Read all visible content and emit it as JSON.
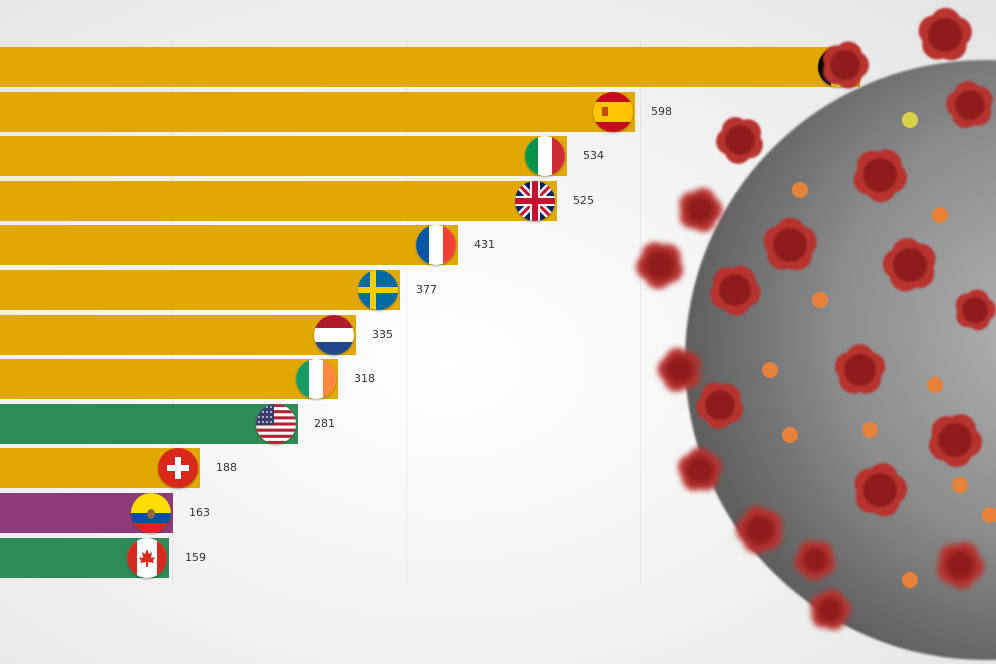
{
  "chart_data": {
    "type": "bar",
    "orientation": "horizontal",
    "categories": [
      "Belgium",
      "Spain",
      "Italy",
      "United Kingdom",
      "France",
      "Sweden",
      "Netherlands",
      "Ireland",
      "United States",
      "Switzerland",
      "Ecuador",
      "Canada"
    ],
    "values": [
      null,
      598,
      534,
      525,
      431,
      377,
      335,
      318,
      281,
      188,
      163,
      159
    ],
    "bar_colors": [
      "#e0a800",
      "#e0a800",
      "#e0a800",
      "#e0a800",
      "#e0a800",
      "#e0a800",
      "#e0a800",
      "#e0a800",
      "#2e8b57",
      "#e0a800",
      "#8e3b7a",
      "#2e8b57"
    ],
    "flag_icons": [
      "belgium-flag-icon",
      "spain-flag-icon",
      "italy-flag-icon",
      "united-kingdom-flag-icon",
      "france-flag-icon",
      "sweden-flag-icon",
      "netherlands-flag-icon",
      "ireland-flag-icon",
      "united-states-flag-icon",
      "switzerland-flag-icon",
      "ecuador-flag-icon",
      "canada-flag-icon"
    ],
    "value_labels": [
      "",
      "598",
      "534",
      "525",
      "431",
      "377",
      "335",
      "318",
      "281",
      "188",
      "163",
      "159"
    ],
    "grid": true,
    "legend": "none"
  },
  "background_colors": {
    "virus_body": "#8f8f8f",
    "virus_spike": "#b8312f",
    "virus_dot": "#e8823a"
  }
}
